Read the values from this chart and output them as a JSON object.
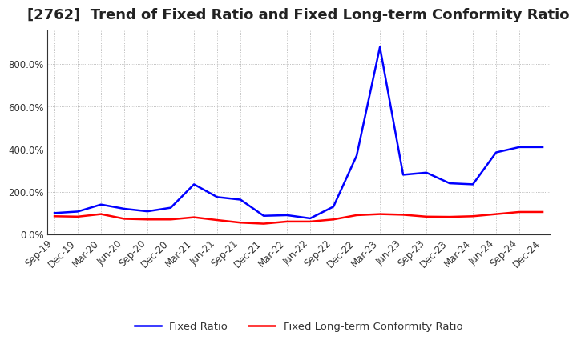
{
  "title": "[2762]  Trend of Fixed Ratio and Fixed Long-term Conformity Ratio",
  "x_labels": [
    "Sep-19",
    "Dec-19",
    "Mar-20",
    "Jun-20",
    "Sep-20",
    "Dec-20",
    "Mar-21",
    "Jun-21",
    "Sep-21",
    "Dec-21",
    "Mar-22",
    "Jun-22",
    "Sep-22",
    "Dec-22",
    "Mar-23",
    "Jun-23",
    "Sep-23",
    "Dec-23",
    "Mar-24",
    "Jun-24",
    "Sep-24",
    "Dec-24"
  ],
  "fixed_ratio": [
    100,
    107,
    140,
    120,
    108,
    125,
    235,
    175,
    163,
    87,
    90,
    75,
    130,
    370,
    880,
    280,
    290,
    240,
    235,
    385,
    410,
    410
  ],
  "fixed_lt_ratio": [
    85,
    83,
    95,
    73,
    70,
    70,
    80,
    67,
    55,
    50,
    60,
    60,
    70,
    90,
    95,
    92,
    83,
    82,
    85,
    95,
    105,
    105
  ],
  "fixed_ratio_color": "#0000FF",
  "fixed_lt_ratio_color": "#FF0000",
  "ylim": [
    0,
    960
  ],
  "yticks": [
    0,
    200,
    400,
    600,
    800
  ],
  "background_color": "#FFFFFF",
  "grid_color": "#999999",
  "legend_fixed": "Fixed Ratio",
  "legend_fixed_lt": "Fixed Long-term Conformity Ratio",
  "title_fontsize": 13,
  "axis_fontsize": 8.5,
  "title_color": "#222222"
}
